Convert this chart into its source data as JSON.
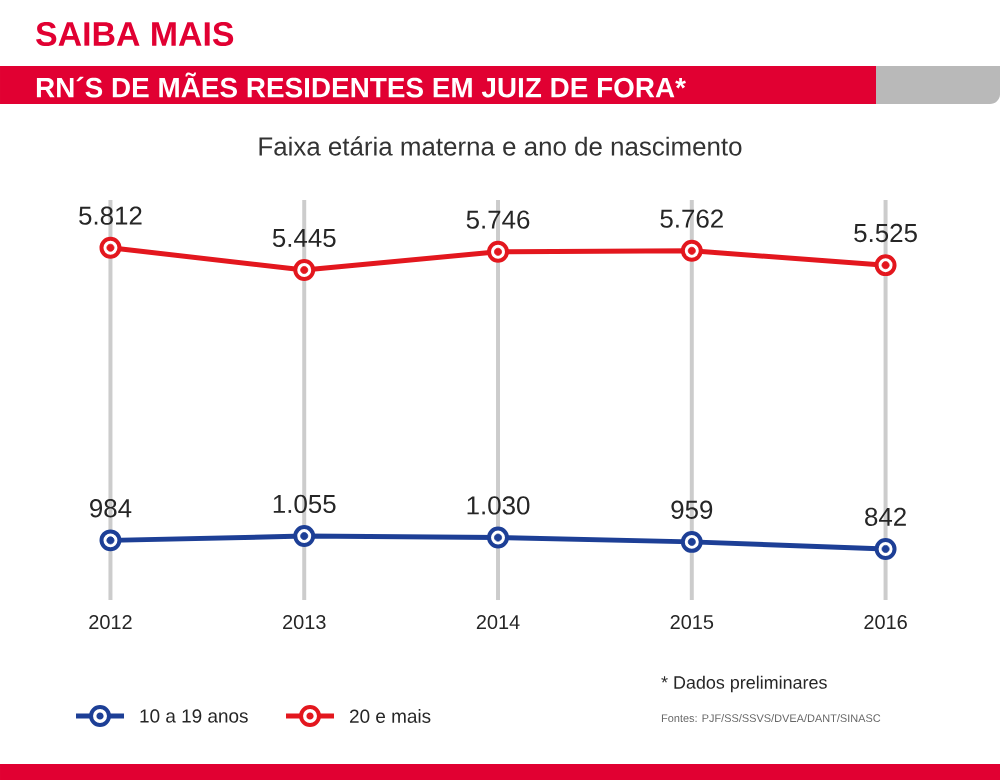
{
  "chart_data": {
    "type": "line",
    "title": "Faixa etária materna e ano de nascimento",
    "subtitle": "RN´S DE MÃES RESIDENTES EM JUIZ DE FORA*",
    "annotations": [
      "SAIBA MAIS",
      "* Dados preliminares",
      "Fontes: PJF/SS/SSVS/DVEA/DANT/SINASC"
    ],
    "categories": [
      "2012",
      "2013",
      "2014",
      "2015",
      "2016"
    ],
    "series": [
      {
        "name": "10 a 19 anos",
        "color": "#1d3f96",
        "values": [
          984,
          1055,
          1030,
          959,
          842
        ],
        "value_labels": [
          "984",
          "1.055",
          "1.030",
          "959",
          "842"
        ]
      },
      {
        "name": "20 e mais",
        "color": "#e3171e",
        "values": [
          5812,
          5445,
          5746,
          5762,
          5525
        ],
        "value_labels": [
          "5.812",
          "5.445",
          "5.746",
          "5.762",
          "5.525"
        ]
      }
    ],
    "ylim": [
      0,
      6600
    ],
    "tick_labels": "x",
    "grid": "x",
    "legend": "bottom",
    "marker": "circle",
    "line_style": "solid"
  }
}
